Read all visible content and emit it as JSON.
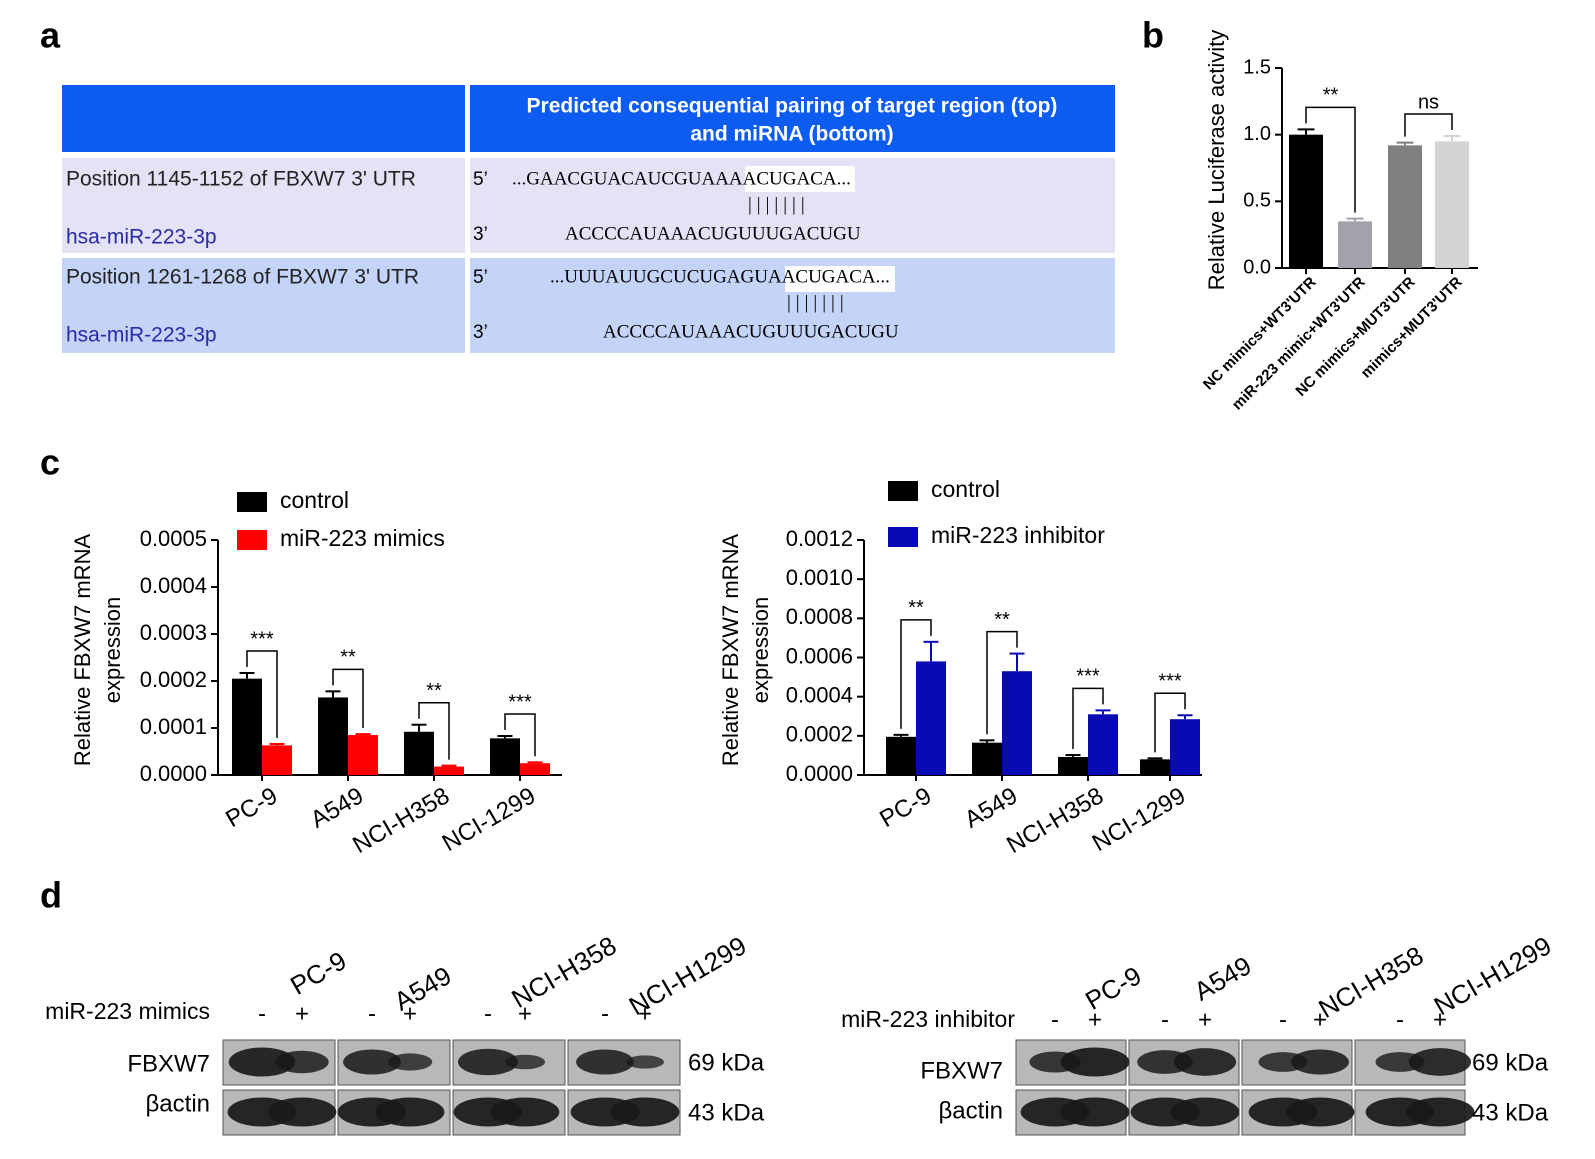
{
  "panel_labels": [
    "a",
    "b",
    "c",
    "d"
  ],
  "table": {
    "header": [
      "Predicted consequential pairing of target region (top)",
      "and miRNA (bottom)"
    ],
    "rows": [
      {
        "target": "Position 1145-1152 of FBXW7 3' UTR",
        "mirna": "hsa-miR-223-3p",
        "five": "5’",
        "three": "3’",
        "top": "...GAACGUACAUCGUAAAACUGACA...",
        "pairs": "|||||||",
        "bottom": "ACCCCAUAAACUGUUUGACUGU"
      },
      {
        "target": "Position 1261-1268 of FBXW7 3' UTR",
        "mirna": "hsa-miR-223-3p",
        "five": "5’",
        "three": "3’",
        "top": "...UUUAUUGCUCUGAGUAACUGACA...",
        "pairs": "|||||||",
        "bottom": "ACCCCAUAAACUGUUUGACUGU"
      }
    ]
  },
  "chart_data": [
    {
      "type": "bar",
      "ylabel": [
        "Relative Luciferase activity"
      ],
      "categories": [
        "NC mimics+WT3'UTR",
        "miR-223 mimic+WT3'UTR",
        "NC mimics+MUT3'UTR",
        "mimics+MUT3'UTR"
      ],
      "values": [
        1.0,
        0.35,
        0.92,
        0.95
      ],
      "errors": [
        0.04,
        0.02,
        0.02,
        0.04
      ],
      "colors": [
        "#000000",
        "#a2a2aa",
        "#7f7f7f",
        "#d3d3d3"
      ],
      "ylim": [
        0,
        1.5
      ],
      "yticks": [
        {
          "value": 0,
          "label": "0.0"
        },
        {
          "value": 0.5,
          "label": "0.5"
        },
        {
          "value": 1,
          "label": "1.0"
        },
        {
          "value": 1.5,
          "label": "1.5"
        }
      ],
      "significance": [
        "**",
        "ns"
      ]
    },
    {
      "type": "grouped_bar",
      "ylabel": [
        "Relative FBXW7 mRNA",
        "expression"
      ],
      "categories": [
        "PC-9",
        "A549",
        "NCI-H358",
        "NCI-1299"
      ],
      "series": [
        {
          "name": "control",
          "color": "#000000",
          "values": [
            0.000205,
            0.000165,
            9.2e-05,
            7.8e-05
          ],
          "errors": [
            1.2e-05,
            1.3e-05,
            1.5e-05,
            5e-06
          ]
        },
        {
          "name": "miR-223  mimics",
          "color": "#ff0000",
          "values": [
            6.3e-05,
            8.5e-05,
            1.8e-05,
            2.5e-05
          ],
          "errors": [
            3e-06,
            2e-06,
            2e-06,
            2e-06
          ]
        }
      ],
      "ylim": [
        0,
        0.0005
      ],
      "yticks": [
        {
          "value": 0,
          "label": "0.0000"
        },
        {
          "value": 0.0001,
          "label": "0.0001"
        },
        {
          "value": 0.0002,
          "label": "0.0002"
        },
        {
          "value": 0.0003,
          "label": "0.0003"
        },
        {
          "value": 0.0004,
          "label": "0.0004"
        },
        {
          "value": 0.0005,
          "label": "0.0005"
        }
      ],
      "significance": [
        "***",
        "**",
        "**",
        "***"
      ]
    },
    {
      "type": "grouped_bar",
      "ylabel": [
        "Relative FBXW7 mRNA",
        "expression"
      ],
      "categories": [
        "PC-9",
        "A549",
        "NCI-H358",
        "NCI-1299"
      ],
      "series": [
        {
          "name": "control",
          "color": "#000000",
          "values": [
            0.000195,
            0.000165,
            9.2e-05,
            8e-05
          ],
          "errors": [
            1e-05,
            1.2e-05,
            1e-05,
            5e-06
          ]
        },
        {
          "name": "miR-223 inhibitor",
          "color": "#0a0ab4",
          "values": [
            0.00058,
            0.00053,
            0.00031,
            0.000285
          ],
          "errors": [
            0.0001,
            9e-05,
            2e-05,
            2e-05
          ]
        }
      ],
      "ylim": [
        0,
        0.0012
      ],
      "yticks": [
        {
          "value": 0,
          "label": "0.0000"
        },
        {
          "value": 0.0002,
          "label": "0.0002"
        },
        {
          "value": 0.0004,
          "label": "0.0004"
        },
        {
          "value": 0.0006,
          "label": "0.0006"
        },
        {
          "value": 0.0008,
          "label": "0.0008"
        },
        {
          "value": 0.001,
          "label": "0.0010"
        },
        {
          "value": 0.0012,
          "label": "0.0012"
        }
      ],
      "significance": [
        "**",
        "**",
        "***",
        "***"
      ]
    }
  ],
  "blots": [
    {
      "treatment": "miR-223 mimics",
      "cell_lines": [
        "PC-9",
        "A549",
        "NCI-H358",
        "NCI-H1299"
      ],
      "lanes": [
        "-",
        "+"
      ],
      "proteins": [
        "FBXW7",
        "βactin"
      ],
      "sizes": [
        "69 kDa",
        "43 kDa"
      ]
    },
    {
      "treatment": "miR-223 inhibitor",
      "cell_lines": [
        "PC-9",
        "A549",
        "NCI-H358",
        "NCI-H1299"
      ],
      "lanes": [
        "-",
        "+"
      ],
      "proteins": [
        "FBXW7",
        "βactin"
      ],
      "sizes": [
        "69 kDa",
        "43 kDa"
      ]
    }
  ]
}
